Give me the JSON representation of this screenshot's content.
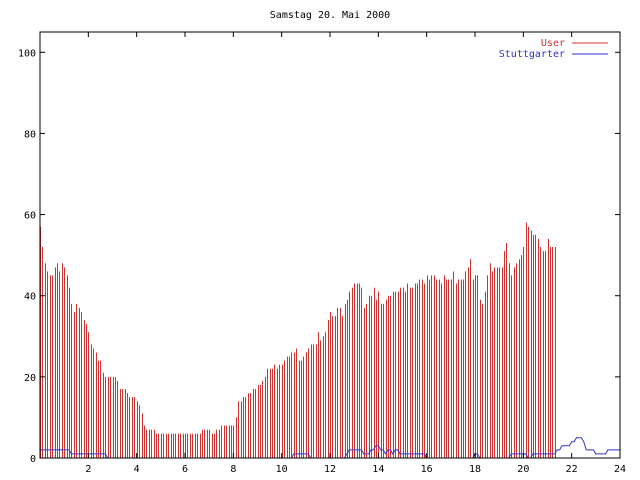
{
  "chart_data": {
    "type": "bar",
    "title": "Samstag 20. Mai 2000",
    "xlabel": "",
    "ylabel": "",
    "xlim": [
      0,
      24
    ],
    "ylim": [
      0,
      105
    ],
    "grid": false,
    "legend_position": "top-right",
    "x_ticks": [
      "2",
      "4",
      "6",
      "8",
      "10",
      "12",
      "14",
      "16",
      "18",
      "20",
      "22",
      "24"
    ],
    "y_ticks": [
      "0",
      "20",
      "40",
      "60",
      "80",
      "100"
    ],
    "series": [
      {
        "name": "User",
        "style": "impulses",
        "color": "#d03030",
        "x_start": 0,
        "x_step": 0.1,
        "values": [
          57,
          52,
          48,
          46,
          45,
          45,
          47,
          48,
          46,
          48,
          47,
          45,
          42,
          38,
          36,
          38,
          37,
          36,
          34,
          33,
          31,
          28,
          27,
          26,
          24,
          24,
          21,
          20,
          20,
          20,
          20,
          20,
          19,
          17,
          17,
          17,
          16,
          15,
          15,
          15,
          14,
          13,
          11,
          8,
          7,
          7,
          7,
          7,
          6,
          6,
          6,
          6,
          6,
          6,
          6,
          6,
          6,
          6,
          6,
          6,
          6,
          6,
          6,
          6,
          6,
          6,
          6,
          7,
          7,
          7,
          7,
          6,
          6,
          7,
          7,
          8,
          8,
          8,
          8,
          8,
          8,
          10,
          14,
          14,
          15,
          15,
          16,
          16,
          17,
          17,
          18,
          18,
          19,
          20,
          22,
          22,
          22,
          23,
          22,
          23,
          23,
          24,
          25,
          25,
          26,
          26,
          27,
          24,
          24,
          25,
          26,
          27,
          28,
          28,
          28,
          31,
          29,
          30,
          31,
          34,
          36,
          35,
          35,
          37,
          37,
          35,
          38,
          39,
          41,
          42,
          43,
          43,
          43,
          42,
          37,
          38,
          40,
          40,
          42,
          39,
          41,
          38,
          38,
          39,
          40,
          40,
          41,
          41,
          41,
          42,
          42,
          41,
          43,
          42,
          42,
          43,
          43,
          44,
          44,
          43,
          45,
          44,
          45,
          45,
          44,
          44,
          43,
          45,
          44,
          44,
          44,
          46,
          43,
          44,
          44,
          44,
          46,
          47,
          49,
          44,
          45,
          45,
          39,
          38,
          41,
          45,
          48,
          46,
          47,
          47,
          47,
          47,
          51,
          53,
          48,
          45,
          47,
          48,
          49,
          50,
          52,
          58,
          57,
          56,
          55,
          55,
          54,
          52,
          51,
          51,
          54,
          52,
          52,
          52
        ]
      },
      {
        "name": "Stuttgarter",
        "style": "line",
        "color": "#3030d0",
        "x_start": 0,
        "x_step": 0.1,
        "values": [
          2,
          2,
          2,
          2,
          2,
          2,
          2,
          2,
          2,
          2,
          2,
          2,
          2,
          1,
          1,
          1,
          1,
          1,
          1,
          1,
          1,
          1,
          1,
          1,
          1,
          1,
          1,
          1,
          0,
          0,
          0,
          0,
          0,
          0,
          0,
          0,
          0,
          0,
          0,
          0,
          0,
          0,
          0,
          0,
          0,
          0,
          0,
          0,
          0,
          0,
          0,
          0,
          0,
          0,
          0,
          0,
          0,
          0,
          0,
          0,
          0,
          0,
          0,
          0,
          0,
          0,
          0,
          0,
          0,
          0,
          0,
          0,
          0,
          0,
          0,
          0,
          0,
          0,
          0,
          0,
          0,
          0,
          0,
          0,
          0,
          0,
          0,
          0,
          0,
          0,
          0,
          0,
          0,
          0,
          0,
          0,
          0,
          0,
          0,
          0,
          0,
          0,
          0,
          0,
          0,
          1,
          1,
          1,
          1,
          1,
          1,
          1,
          0,
          0,
          0,
          0,
          0,
          0,
          0,
          0,
          0,
          0,
          0,
          0,
          0,
          0,
          0,
          1,
          2,
          2,
          2,
          2,
          2,
          2,
          1,
          1,
          1,
          2,
          2,
          3,
          3,
          2,
          2,
          1,
          2,
          2,
          1,
          2,
          2,
          1,
          1,
          1,
          1,
          1,
          1,
          1,
          1,
          1,
          1,
          1,
          0,
          0,
          0,
          0,
          0,
          0,
          0,
          0,
          0,
          0,
          0,
          0,
          0,
          0,
          0,
          0,
          0,
          0,
          0,
          0,
          1,
          1,
          0,
          0,
          0,
          0,
          0,
          0,
          0,
          0,
          0,
          0,
          0,
          0,
          0,
          1,
          1,
          1,
          1,
          1,
          1,
          1,
          0,
          0,
          1,
          1,
          1,
          1,
          1,
          1,
          1,
          1,
          1,
          1,
          2,
          2,
          3,
          3,
          3,
          3,
          4,
          4,
          5,
          5,
          5,
          4,
          2,
          2,
          2,
          2,
          1,
          1,
          1,
          1,
          1,
          2,
          2,
          2,
          2,
          2,
          2
        ]
      }
    ]
  }
}
